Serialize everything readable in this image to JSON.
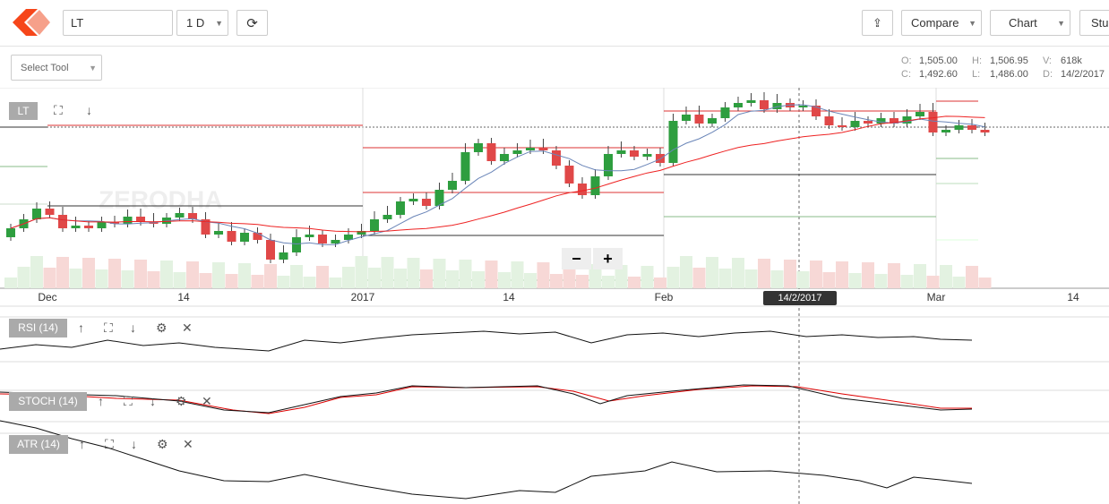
{
  "toolbar": {
    "symbol": "LT",
    "interval": "1 D",
    "compare": "Compare",
    "chart": "Chart",
    "studies": "Stu",
    "select_tool": "Select Tool"
  },
  "ohlc": {
    "o_label": "O:",
    "o": "1,505.00",
    "h_label": "H:",
    "h": "1,506.95",
    "v_label": "V:",
    "v": "618k",
    "c_label": "C:",
    "c": "1,492.60",
    "l_label": "L:",
    "l": "1,486.00",
    "d_label": "D:",
    "d": "14/2/2017"
  },
  "main_panel": {
    "label": "LT",
    "watermark": "ZERODHA",
    "x_labels": [
      "Dec",
      "14",
      "2017",
      "14",
      "Feb",
      "Mar",
      "14"
    ],
    "crosshair_date": "14/2/2017"
  },
  "panels": [
    "RSI (14)",
    "STOCH (14)",
    "ATR (14)"
  ]
}
